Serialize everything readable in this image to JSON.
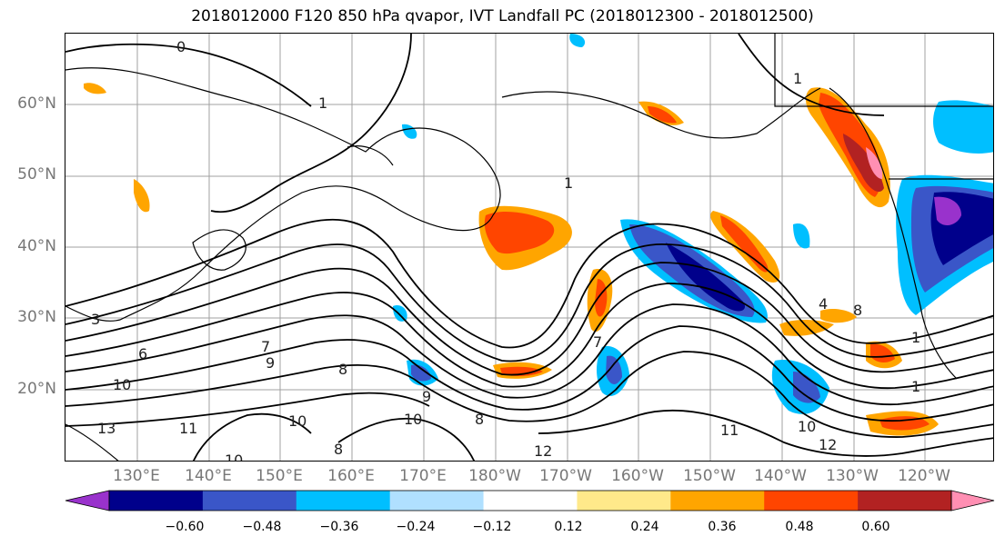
{
  "title": "2018012000 F120 850 hPa qvapor, IVT Landfall PC (2018012300 - 2018012500)",
  "lat_labels": [
    "60°N",
    "50°N",
    "40°N",
    "30°N",
    "20°N"
  ],
  "lon_labels": [
    "130°E",
    "140°E",
    "150°E",
    "160°E",
    "170°E",
    "180°W",
    "170°W",
    "160°W",
    "150°W",
    "140°W",
    "130°W",
    "120°W"
  ],
  "colorbar": {
    "ticks": [
      "−0.60",
      "−0.48",
      "−0.36",
      "−0.24",
      "−0.12",
      "0.12",
      "0.24",
      "0.36",
      "0.48",
      "0.60"
    ],
    "colors": [
      "#9932cc",
      "#00008b",
      "#3a56c8",
      "#00bfff",
      "#b0e0ff",
      "#ffffff",
      "#ffe98a",
      "#ffa500",
      "#ff4500",
      "#b22222",
      "#ff8fb3"
    ]
  },
  "contour_labels": [
    "0",
    "1",
    "1",
    "1",
    "3",
    "6",
    "7",
    "9",
    "10",
    "10",
    "10",
    "11",
    "13",
    "8",
    "9",
    "10",
    "8",
    "8",
    "12",
    "11",
    "10",
    "12",
    "1",
    "1",
    "4",
    "8",
    "7"
  ]
}
